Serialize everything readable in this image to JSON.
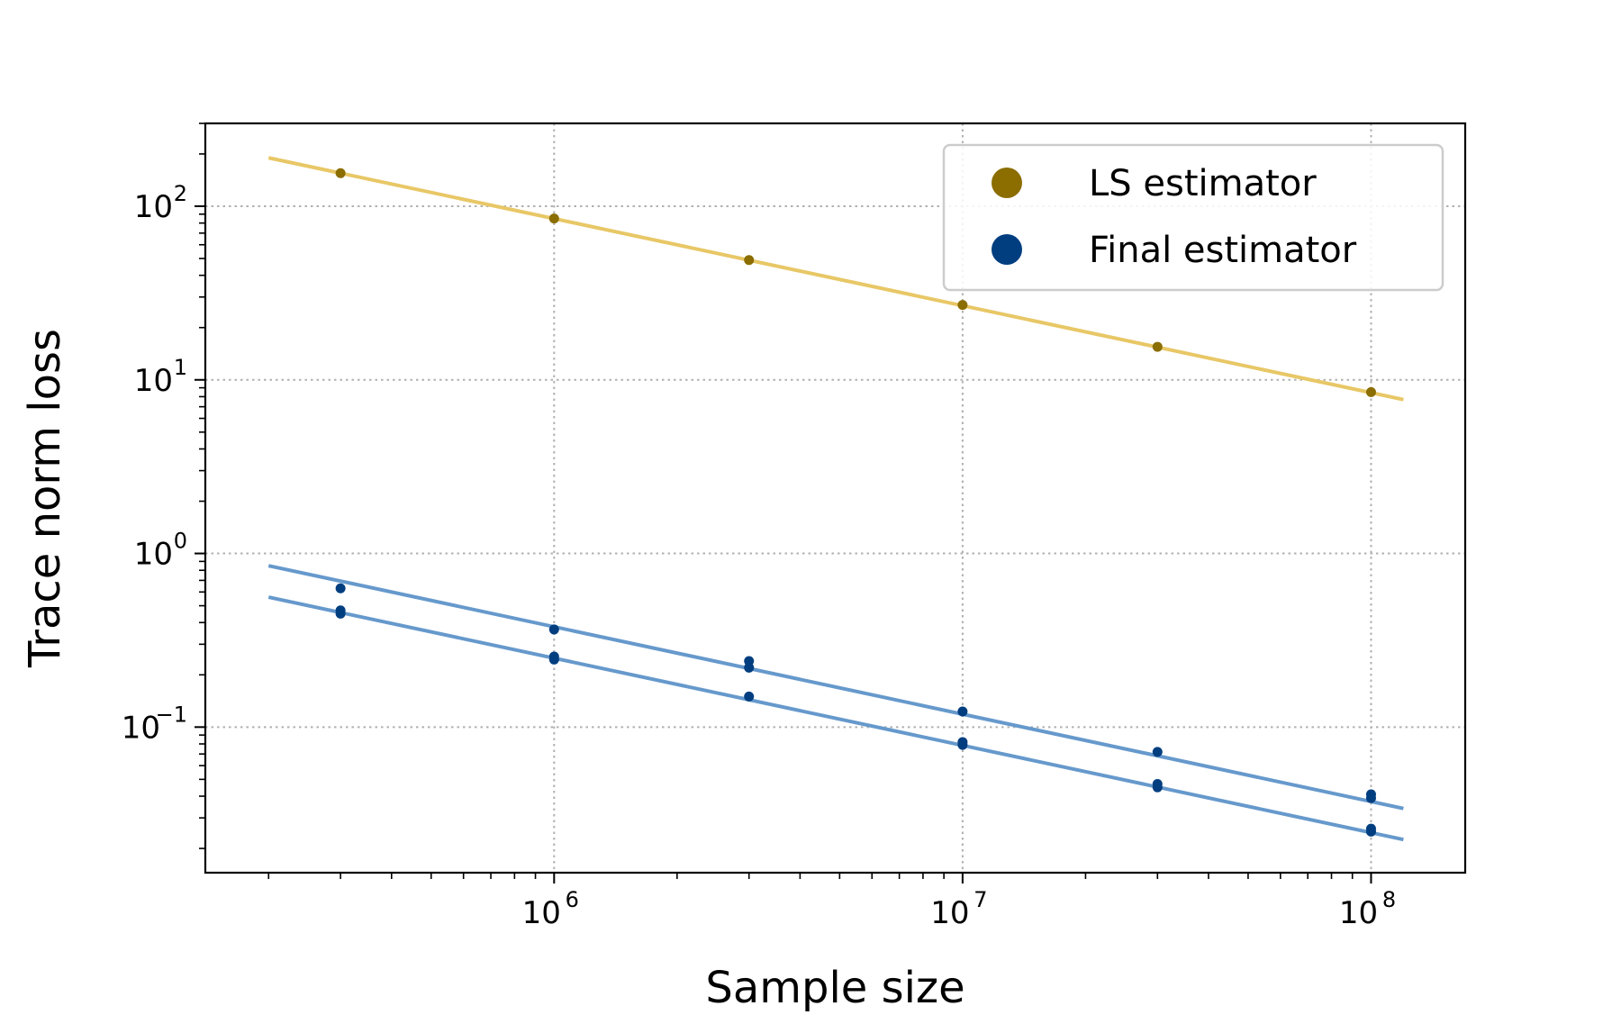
{
  "chart_data": {
    "type": "scatter",
    "xlabel": "Sample size",
    "ylabel": "Trace norm loss",
    "xscale": "log",
    "yscale": "log",
    "xlim": [
      140000,
      170000000
    ],
    "ylim": [
      0.0145,
      300
    ],
    "x_ticks": [
      {
        "value": 1000000,
        "base": "10",
        "exp": "6"
      },
      {
        "value": 10000000,
        "base": "10",
        "exp": "7"
      },
      {
        "value": 100000000,
        "base": "10",
        "exp": "8"
      }
    ],
    "y_ticks": [
      {
        "value": 100,
        "base": "10",
        "exp": "2"
      },
      {
        "value": 10,
        "base": "10",
        "exp": "1"
      },
      {
        "value": 1,
        "base": "10",
        "exp": "0"
      },
      {
        "value": 0.1,
        "base": "10",
        "exp": "−1"
      }
    ],
    "grid": true,
    "legend_position": "top-right",
    "series": [
      {
        "name": "LS estimator",
        "marker_color": "#8B6D00",
        "line_color": "#E8C766",
        "points": [
          {
            "x": 300000,
            "y": 155
          },
          {
            "x": 1000000,
            "y": 85
          },
          {
            "x": 3000000,
            "y": 49
          },
          {
            "x": 10000000,
            "y": 27
          },
          {
            "x": 30000000,
            "y": 15.5
          },
          {
            "x": 100000000,
            "y": 8.5
          }
        ],
        "fit_lines": [
          {
            "x": [
              200000,
              120000000
            ],
            "y": [
              190,
              7.7
            ]
          }
        ]
      },
      {
        "name": "Final estimator",
        "marker_color": "#003E80",
        "line_color": "#6699CC",
        "points": [
          {
            "x": 300000,
            "y": 0.63
          },
          {
            "x": 300000,
            "y": 0.47
          },
          {
            "x": 300000,
            "y": 0.45
          },
          {
            "x": 1000000,
            "y": 0.365
          },
          {
            "x": 1000000,
            "y": 0.255
          },
          {
            "x": 1000000,
            "y": 0.245
          },
          {
            "x": 3000000,
            "y": 0.24
          },
          {
            "x": 3000000,
            "y": 0.22
          },
          {
            "x": 3000000,
            "y": 0.15
          },
          {
            "x": 10000000,
            "y": 0.123
          },
          {
            "x": 10000000,
            "y": 0.082
          },
          {
            "x": 10000000,
            "y": 0.079
          },
          {
            "x": 30000000,
            "y": 0.072
          },
          {
            "x": 30000000,
            "y": 0.047
          },
          {
            "x": 30000000,
            "y": 0.045
          },
          {
            "x": 100000000,
            "y": 0.041
          },
          {
            "x": 100000000,
            "y": 0.039
          },
          {
            "x": 100000000,
            "y": 0.026
          },
          {
            "x": 100000000,
            "y": 0.025
          }
        ],
        "fit_lines": [
          {
            "x": [
              200000,
              120000000
            ],
            "y": [
              0.85,
              0.034
            ]
          },
          {
            "x": [
              200000,
              120000000
            ],
            "y": [
              0.56,
              0.0225
            ]
          }
        ]
      }
    ]
  }
}
